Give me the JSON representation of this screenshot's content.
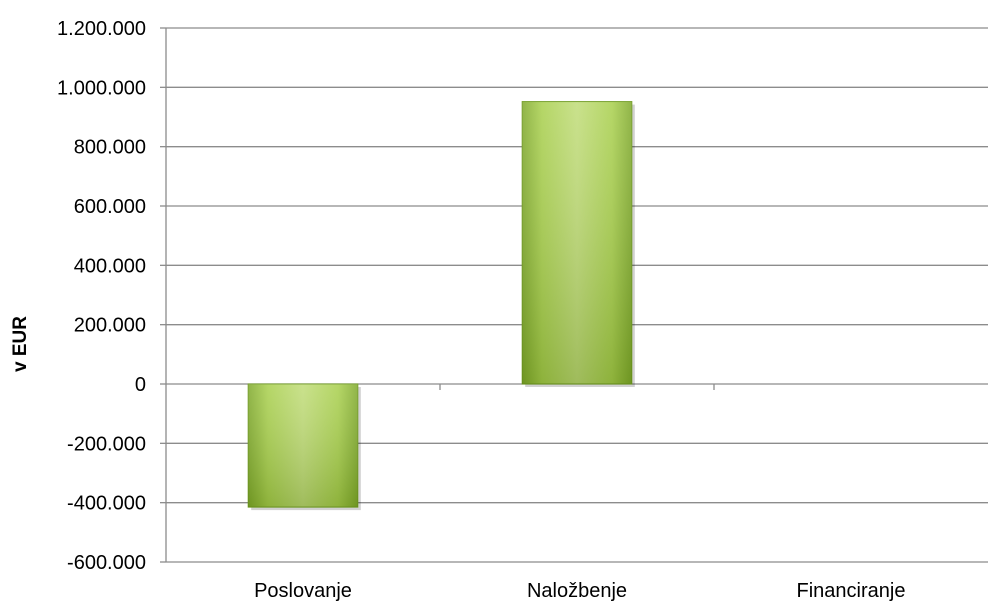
{
  "chart_data": {
    "type": "bar",
    "categories": [
      "Poslovanje",
      "Naložbenje",
      "Financiranje"
    ],
    "values": [
      -415000,
      952000,
      0
    ],
    "ylabel": "v EUR",
    "ylim": [
      -600000,
      1200000
    ],
    "yticks": [
      -600000,
      -400000,
      -200000,
      0,
      200000,
      400000,
      600000,
      800000,
      1000000,
      1200000
    ],
    "ytick_labels": [
      "-600.000",
      "-400.000",
      "-200.000",
      "0",
      "200.000",
      "400.000",
      "600.000",
      "800.000",
      "1.000.000",
      "1.200.000"
    ],
    "grid": true,
    "legend": "none",
    "colors": {
      "bar_light": "#c3dc7a",
      "bar_mid": "#9cc63e",
      "bar_dark": "#6e9a1f",
      "grid": "#8c8c8c"
    }
  }
}
